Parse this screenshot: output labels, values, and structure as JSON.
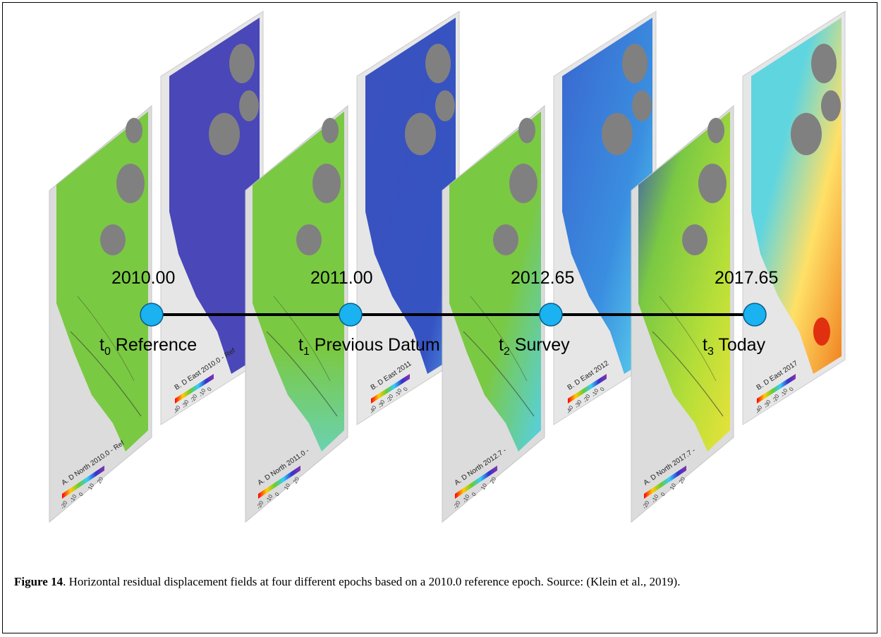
{
  "epochs": [
    {
      "value": "2010.00",
      "sub": "0",
      "label": "Reference"
    },
    {
      "value": "2011.00",
      "sub": "1",
      "label": "Previous Datum"
    },
    {
      "value": "2012.65",
      "sub": "2",
      "label": "Survey"
    },
    {
      "value": "2017.65",
      "sub": "3",
      "label": "Today"
    }
  ],
  "panels": [
    {
      "a_label": "A. D",
      "a_sup": "DGSM",
      "a_sub": "North",
      "a_tail": "2010.0 - Ref",
      "b_label": "B. D",
      "b_sup": "DGSM",
      "b_sub": "East",
      "b_tail": "2010.0 - Ref"
    },
    {
      "a_label": "A. D",
      "a_sup": "DGSM",
      "a_sub": "North",
      "a_tail": "2011.0 -",
      "b_label": "B. D",
      "b_sup": "DGSM",
      "b_sub": "East",
      "b_tail": "2011"
    },
    {
      "a_label": "A. D",
      "a_sup": "DGSM",
      "a_sub": "North",
      "a_tail": "2012.7 -",
      "b_label": "B. D",
      "b_sup": "DGSM",
      "b_sub": "East",
      "b_tail": "2012"
    },
    {
      "a_label": "A. D",
      "a_sup": "DGSM",
      "a_sub": "North",
      "a_tail": "2017.7 -",
      "b_label": "B. D",
      "b_sup": "DGSM",
      "b_sub": "East",
      "b_tail": "2017"
    }
  ],
  "a_ticks": [
    "-20",
    "-10",
    "0",
    "10",
    "20"
  ],
  "b_ticks": [
    "-40",
    "-30",
    "-20",
    "-10",
    "0"
  ],
  "colors": {
    "north_map": "#7ac943",
    "east_map": [
      "#4a47b8",
      "#3a55c0",
      "#3a7ad8",
      "#4ec8e0"
    ],
    "gray_region": "#808080",
    "land_bg": "#cfcfcf",
    "node": "#1ab2f0",
    "line": "#000000"
  },
  "caption": {
    "label": "Figure 14",
    "text": ". Horizontal residual displacement fields at four different epochs based on a 2010.0 reference epoch. Source: (Klein et al., 2019)."
  }
}
